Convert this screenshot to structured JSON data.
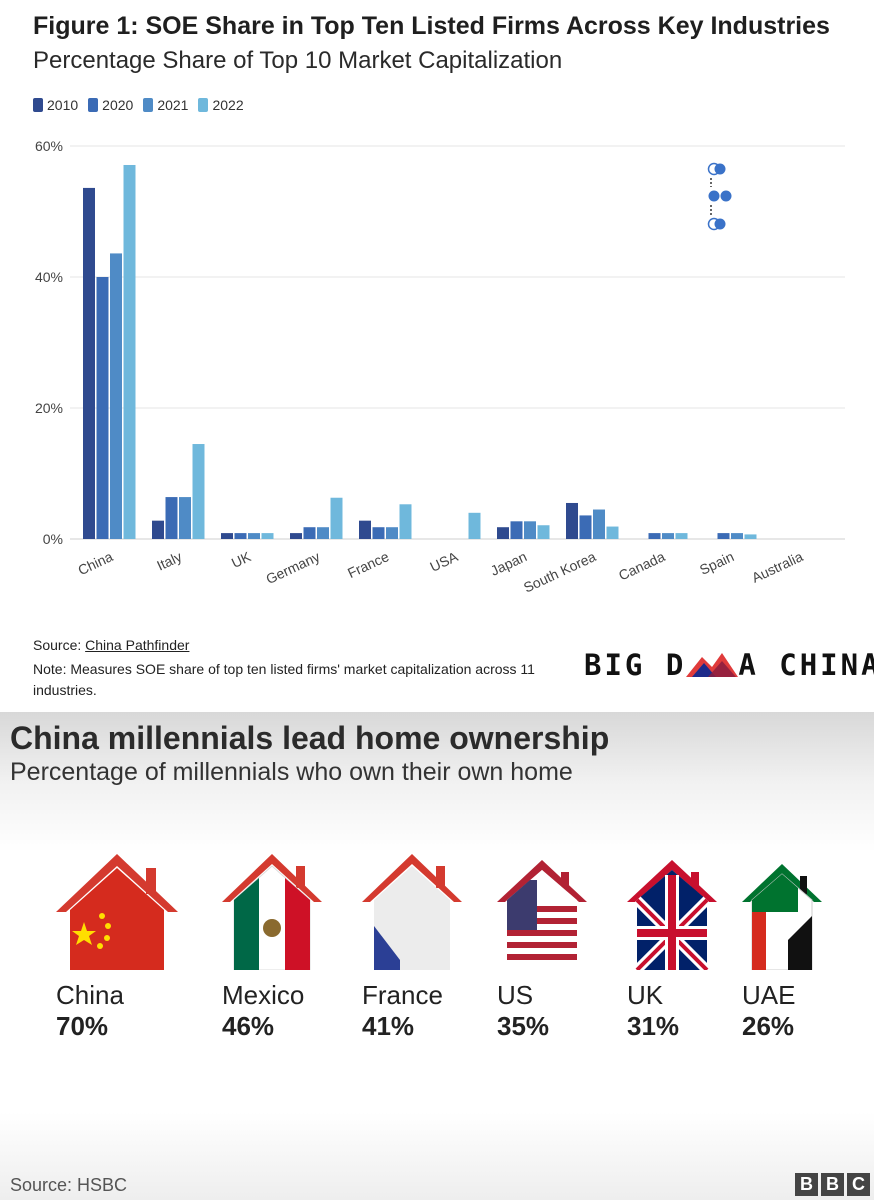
{
  "figure": {
    "title": "Figure 1: SOE Share in Top Ten Listed Firms Across Key Industries",
    "subtitle": "Percentage Share of Top 10 Market Capitalization",
    "source_label": "Source: ",
    "source_link": "China Pathfinder",
    "note": "Note: Measures SOE share of top ten listed firms' market capitalization across 11 industries.",
    "logo": {
      "part1": "BIG D",
      "part2": "A CHINA"
    }
  },
  "chart_data": [
    {
      "type": "bar",
      "title": "Figure 1: SOE Share in Top Ten Listed Firms Across Key Industries",
      "subtitle": "Percentage Share of Top 10 Market Capitalization",
      "categories": [
        "China",
        "Italy",
        "UK",
        "Germany",
        "France",
        "USA",
        "Japan",
        "South Korea",
        "Canada",
        "Spain",
        "Australia"
      ],
      "series": [
        {
          "name": "2010",
          "color": "#2f4a8f",
          "values": [
            53.6,
            2.8,
            0.9,
            0.9,
            2.8,
            0,
            1.8,
            5.5,
            0,
            0,
            0
          ]
        },
        {
          "name": "2020",
          "color": "#3b6bb5",
          "values": [
            40.0,
            6.4,
            0.9,
            1.8,
            1.8,
            0,
            2.7,
            3.6,
            0.9,
            0.9,
            0
          ]
        },
        {
          "name": "2021",
          "color": "#4f8bc6",
          "values": [
            43.6,
            6.4,
            0.9,
            1.8,
            1.8,
            0,
            2.7,
            4.5,
            0.9,
            0.9,
            0
          ]
        },
        {
          "name": "2022",
          "color": "#6fb8dc",
          "values": [
            57.1,
            14.5,
            0.9,
            6.3,
            5.3,
            4.0,
            2.1,
            1.9,
            0.9,
            0.7,
            0
          ]
        }
      ],
      "yticks": [
        "0%",
        "20%",
        "40%",
        "60%"
      ],
      "ylim": [
        0,
        60
      ],
      "grid": true,
      "legend_position": "top-left"
    },
    {
      "type": "table",
      "title": "China millennials lead home ownership",
      "subtitle": "Percentage of millennials who own their own home",
      "categories": [
        "China",
        "Mexico",
        "France",
        "US",
        "UK",
        "UAE"
      ],
      "values": [
        70,
        46,
        41,
        35,
        31,
        26
      ],
      "labels": [
        "70%",
        "46%",
        "41%",
        "35%",
        "31%",
        "26%"
      ]
    }
  ],
  "bbc": {
    "title": "China millennials lead home ownership",
    "subtitle": "Percentage of millennials who own their own home",
    "countries": [
      {
        "name": "China",
        "pct": "70%",
        "icon": "china-flag-house-icon"
      },
      {
        "name": "Mexico",
        "pct": "46%",
        "icon": "mexico-flag-house-icon"
      },
      {
        "name": "France",
        "pct": "41%",
        "icon": "france-flag-house-icon"
      },
      {
        "name": "US",
        "pct": "35%",
        "icon": "us-flag-house-icon"
      },
      {
        "name": "UK",
        "pct": "31%",
        "icon": "uk-flag-house-icon"
      },
      {
        "name": "UAE",
        "pct": "26%",
        "icon": "uae-flag-house-icon"
      }
    ],
    "source": "Source: HSBC",
    "logo": [
      "B",
      "B",
      "C"
    ]
  }
}
